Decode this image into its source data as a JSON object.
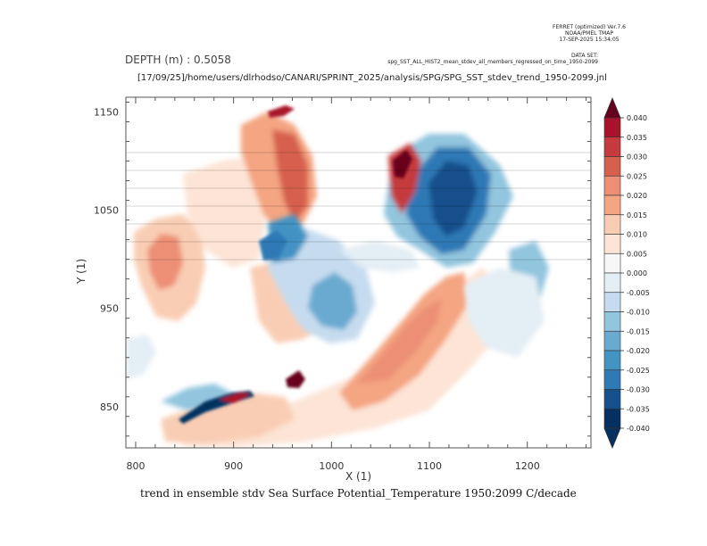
{
  "header": {
    "ferret_line1": "FERRET (optimized) Ver.7.6",
    "ferret_line2": "NOAA/PMEL TMAP",
    "ferret_line3": "17-SEP-2025 15:34:05",
    "dataset_label": "DATA SET:",
    "dataset_name": "spg_SST_ALL_HIST2_mean_stdev_all_members_regressed_on_time_1950-2099"
  },
  "depth_text": "DEPTH (m) : 0.5058",
  "journal_path": "[17/09/25]/home/users/dlrhodso/CANARI/SPRINT_2025/analysis/SPG/SPG_SST_stdev_trend_1950-2099.jnl",
  "chart_data": {
    "type": "heatmap",
    "title": "trend in ensemble stdv Sea Surface Potential_Temperature 1950:2099 C/decade",
    "xlabel": "X (1)",
    "ylabel": "Y (1)",
    "xlim": [
      790,
      1265
    ],
    "ylim": [
      808,
      1165
    ],
    "x_ticks": [
      800,
      900,
      1000,
      1100,
      1200
    ],
    "y_ticks": [
      850,
      950,
      1050,
      1150
    ],
    "colorbar": {
      "levels": [
        "0.040",
        "0.035",
        "0.030",
        "0.025",
        "0.020",
        "0.015",
        "0.010",
        "0.005",
        "0.000",
        "-0.005",
        "-0.010",
        "-0.015",
        "-0.020",
        "-0.025",
        "-0.030",
        "-0.035",
        "-0.040"
      ],
      "colors": [
        "#67001f",
        "#a8132b",
        "#c53a3e",
        "#d6604d",
        "#ec8f75",
        "#f4a582",
        "#f9cdb4",
        "#fde4d6",
        "#f7f7f7",
        "#e4eef5",
        "#c6dbef",
        "#92c5de",
        "#6aaad0",
        "#4393c3",
        "#2f79b5",
        "#16508c",
        "#053061"
      ]
    }
  }
}
